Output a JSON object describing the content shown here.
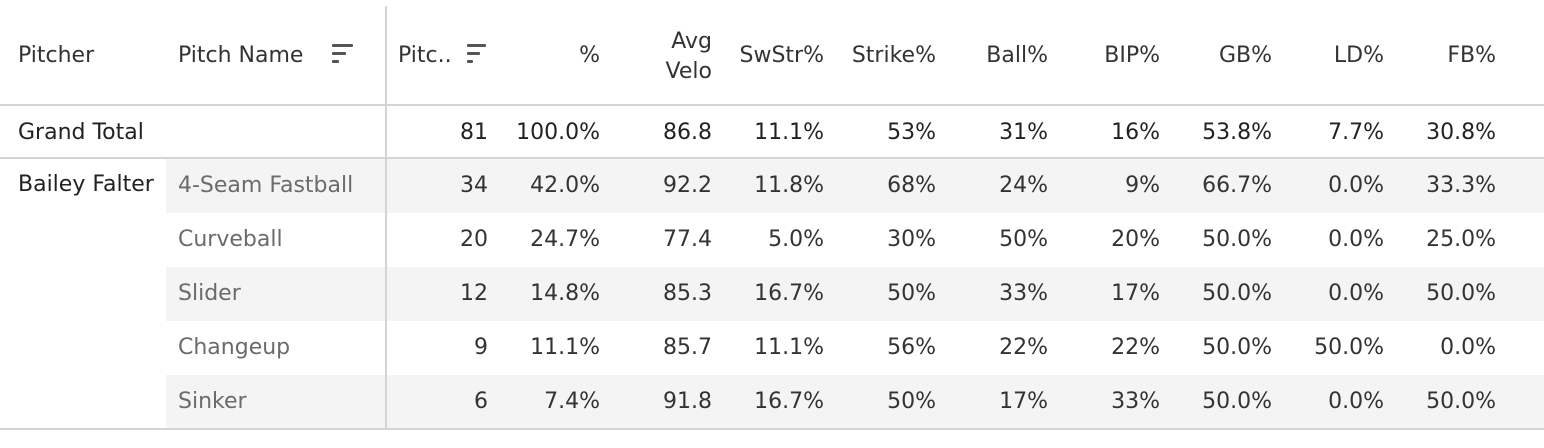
{
  "headers": {
    "pitcher": "Pitcher",
    "pitch_name": "Pitch Name",
    "pitches": "Pitc..",
    "pct": "%",
    "avg_velo_line1": "Avg",
    "avg_velo_line2": "Velo",
    "swstr": "SwStr%",
    "strike": "Strike%",
    "ball": "Ball%",
    "bip": "BIP%",
    "gb": "GB%",
    "ld": "LD%",
    "fb": "FB%"
  },
  "icons": {
    "pitch_name_sort": "sort-descending-icon",
    "pitches_sort": "sort-descending-icon"
  },
  "grand_total": {
    "label": "Grand Total",
    "pitches": "81",
    "pct": "100.0%",
    "avg_velo": "86.8",
    "swstr": "11.1%",
    "strike": "53%",
    "ball": "31%",
    "bip": "16%",
    "gb": "53.8%",
    "ld": "7.7%",
    "fb": "30.8%"
  },
  "pitcher": "Bailey Falter",
  "rows": [
    {
      "name": "4-Seam Fastball",
      "pitches": "34",
      "pct": "42.0%",
      "avg_velo": "92.2",
      "swstr": "11.8%",
      "strike": "68%",
      "ball": "24%",
      "bip": "9%",
      "gb": "66.7%",
      "ld": "0.0%",
      "fb": "33.3%"
    },
    {
      "name": "Curveball",
      "pitches": "20",
      "pct": "24.7%",
      "avg_velo": "77.4",
      "swstr": "5.0%",
      "strike": "30%",
      "ball": "50%",
      "bip": "20%",
      "gb": "50.0%",
      "ld": "0.0%",
      "fb": "25.0%"
    },
    {
      "name": "Slider",
      "pitches": "12",
      "pct": "14.8%",
      "avg_velo": "85.3",
      "swstr": "16.7%",
      "strike": "50%",
      "ball": "33%",
      "bip": "17%",
      "gb": "50.0%",
      "ld": "0.0%",
      "fb": "50.0%"
    },
    {
      "name": "Changeup",
      "pitches": "9",
      "pct": "11.1%",
      "avg_velo": "85.7",
      "swstr": "11.1%",
      "strike": "56%",
      "ball": "22%",
      "bip": "22%",
      "gb": "50.0%",
      "ld": "50.0%",
      "fb": "0.0%"
    },
    {
      "name": "Sinker",
      "pitches": "6",
      "pct": "7.4%",
      "avg_velo": "91.8",
      "swstr": "16.7%",
      "strike": "50%",
      "ball": "17%",
      "bip": "33%",
      "gb": "50.0%",
      "ld": "0.0%",
      "fb": "50.0%"
    }
  ]
}
